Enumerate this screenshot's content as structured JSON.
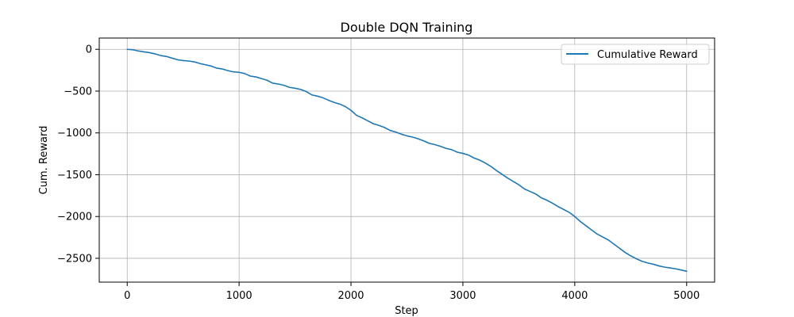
{
  "chart_data": {
    "type": "line",
    "title": "Double DQN Training",
    "xlabel": "Step",
    "ylabel": "Cum. Reward",
    "xlim": [
      -250,
      5250
    ],
    "ylim": [
      -2785,
      135
    ],
    "xticks": [
      0,
      1000,
      2000,
      3000,
      4000,
      5000
    ],
    "yticks": [
      0,
      -500,
      -1000,
      -1500,
      -2000,
      -2500
    ],
    "grid": true,
    "legend_position": "top-right",
    "series": [
      {
        "name": "Cumulative Reward",
        "color": "#1f77b4",
        "x": [
          0,
          50,
          100,
          150,
          200,
          250,
          300,
          350,
          400,
          450,
          500,
          550,
          600,
          650,
          700,
          750,
          800,
          850,
          900,
          950,
          1000,
          1050,
          1100,
          1150,
          1200,
          1250,
          1300,
          1350,
          1400,
          1450,
          1500,
          1550,
          1600,
          1650,
          1700,
          1750,
          1800,
          1850,
          1900,
          1950,
          2000,
          2050,
          2100,
          2150,
          2200,
          2250,
          2300,
          2350,
          2400,
          2450,
          2500,
          2550,
          2600,
          2650,
          2700,
          2750,
          2800,
          2850,
          2900,
          2950,
          3000,
          3050,
          3100,
          3150,
          3200,
          3250,
          3300,
          3350,
          3400,
          3450,
          3500,
          3550,
          3600,
          3650,
          3700,
          3750,
          3800,
          3850,
          3900,
          3950,
          4000,
          4050,
          4100,
          4150,
          4200,
          4250,
          4300,
          4350,
          4400,
          4450,
          4500,
          4550,
          4600,
          4650,
          4700,
          4750,
          4800,
          4850,
          4900,
          4950,
          5000
        ],
        "y": [
          0,
          -5,
          -20,
          -30,
          -40,
          -55,
          -75,
          -85,
          -105,
          -125,
          -135,
          -140,
          -150,
          -170,
          -185,
          -200,
          -225,
          -235,
          -255,
          -270,
          -275,
          -290,
          -320,
          -330,
          -350,
          -370,
          -405,
          -415,
          -430,
          -455,
          -465,
          -480,
          -505,
          -545,
          -560,
          -580,
          -610,
          -635,
          -655,
          -685,
          -730,
          -790,
          -820,
          -855,
          -890,
          -910,
          -935,
          -970,
          -990,
          -1015,
          -1035,
          -1050,
          -1070,
          -1095,
          -1125,
          -1140,
          -1160,
          -1185,
          -1200,
          -1230,
          -1245,
          -1265,
          -1300,
          -1325,
          -1360,
          -1400,
          -1450,
          -1495,
          -1540,
          -1580,
          -1620,
          -1670,
          -1700,
          -1730,
          -1775,
          -1805,
          -1840,
          -1880,
          -1915,
          -1950,
          -2000,
          -2060,
          -2110,
          -2160,
          -2210,
          -2245,
          -2280,
          -2330,
          -2380,
          -2430,
          -2470,
          -2505,
          -2535,
          -2555,
          -2570,
          -2590,
          -2605,
          -2615,
          -2625,
          -2640,
          -2655
        ]
      }
    ]
  }
}
